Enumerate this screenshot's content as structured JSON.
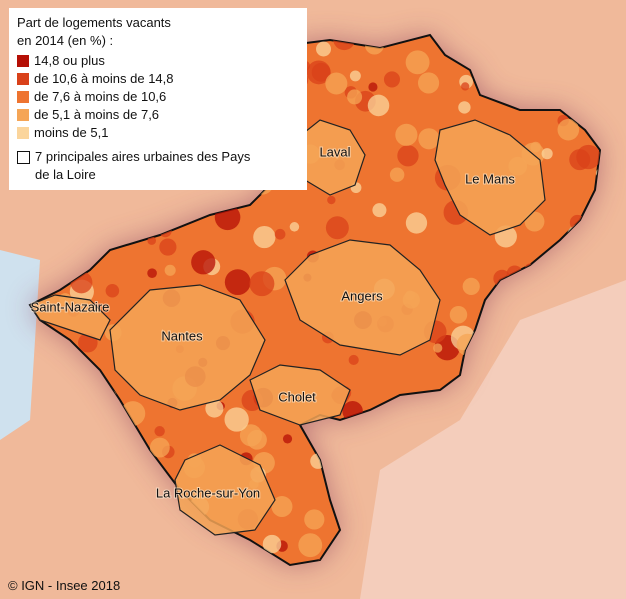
{
  "legend": {
    "title": "Part de logements vacants en 2014 (en %) :",
    "items": [
      {
        "label": "14,8 ou plus",
        "color": "#b50f05"
      },
      {
        "label": "de 10,6 à moins de 14,8",
        "color": "#d9411a"
      },
      {
        "label": "de 7,6 à moins de 10,6",
        "color": "#ee7430"
      },
      {
        "label": "de 5,1 à moins de 7,6",
        "color": "#f5a556"
      },
      {
        "label": "moins de 5,1",
        "color": "#fbd59c"
      }
    ],
    "boundary_label": "7 principales aires urbaines des Pays de la Loire"
  },
  "places": [
    "Laval",
    "Le Mans",
    "Angers",
    "Nantes",
    "Saint-Nazaire",
    "Cholet",
    "La Roche-sur-Yon"
  ],
  "credit": "© IGN - Insee 2018"
}
